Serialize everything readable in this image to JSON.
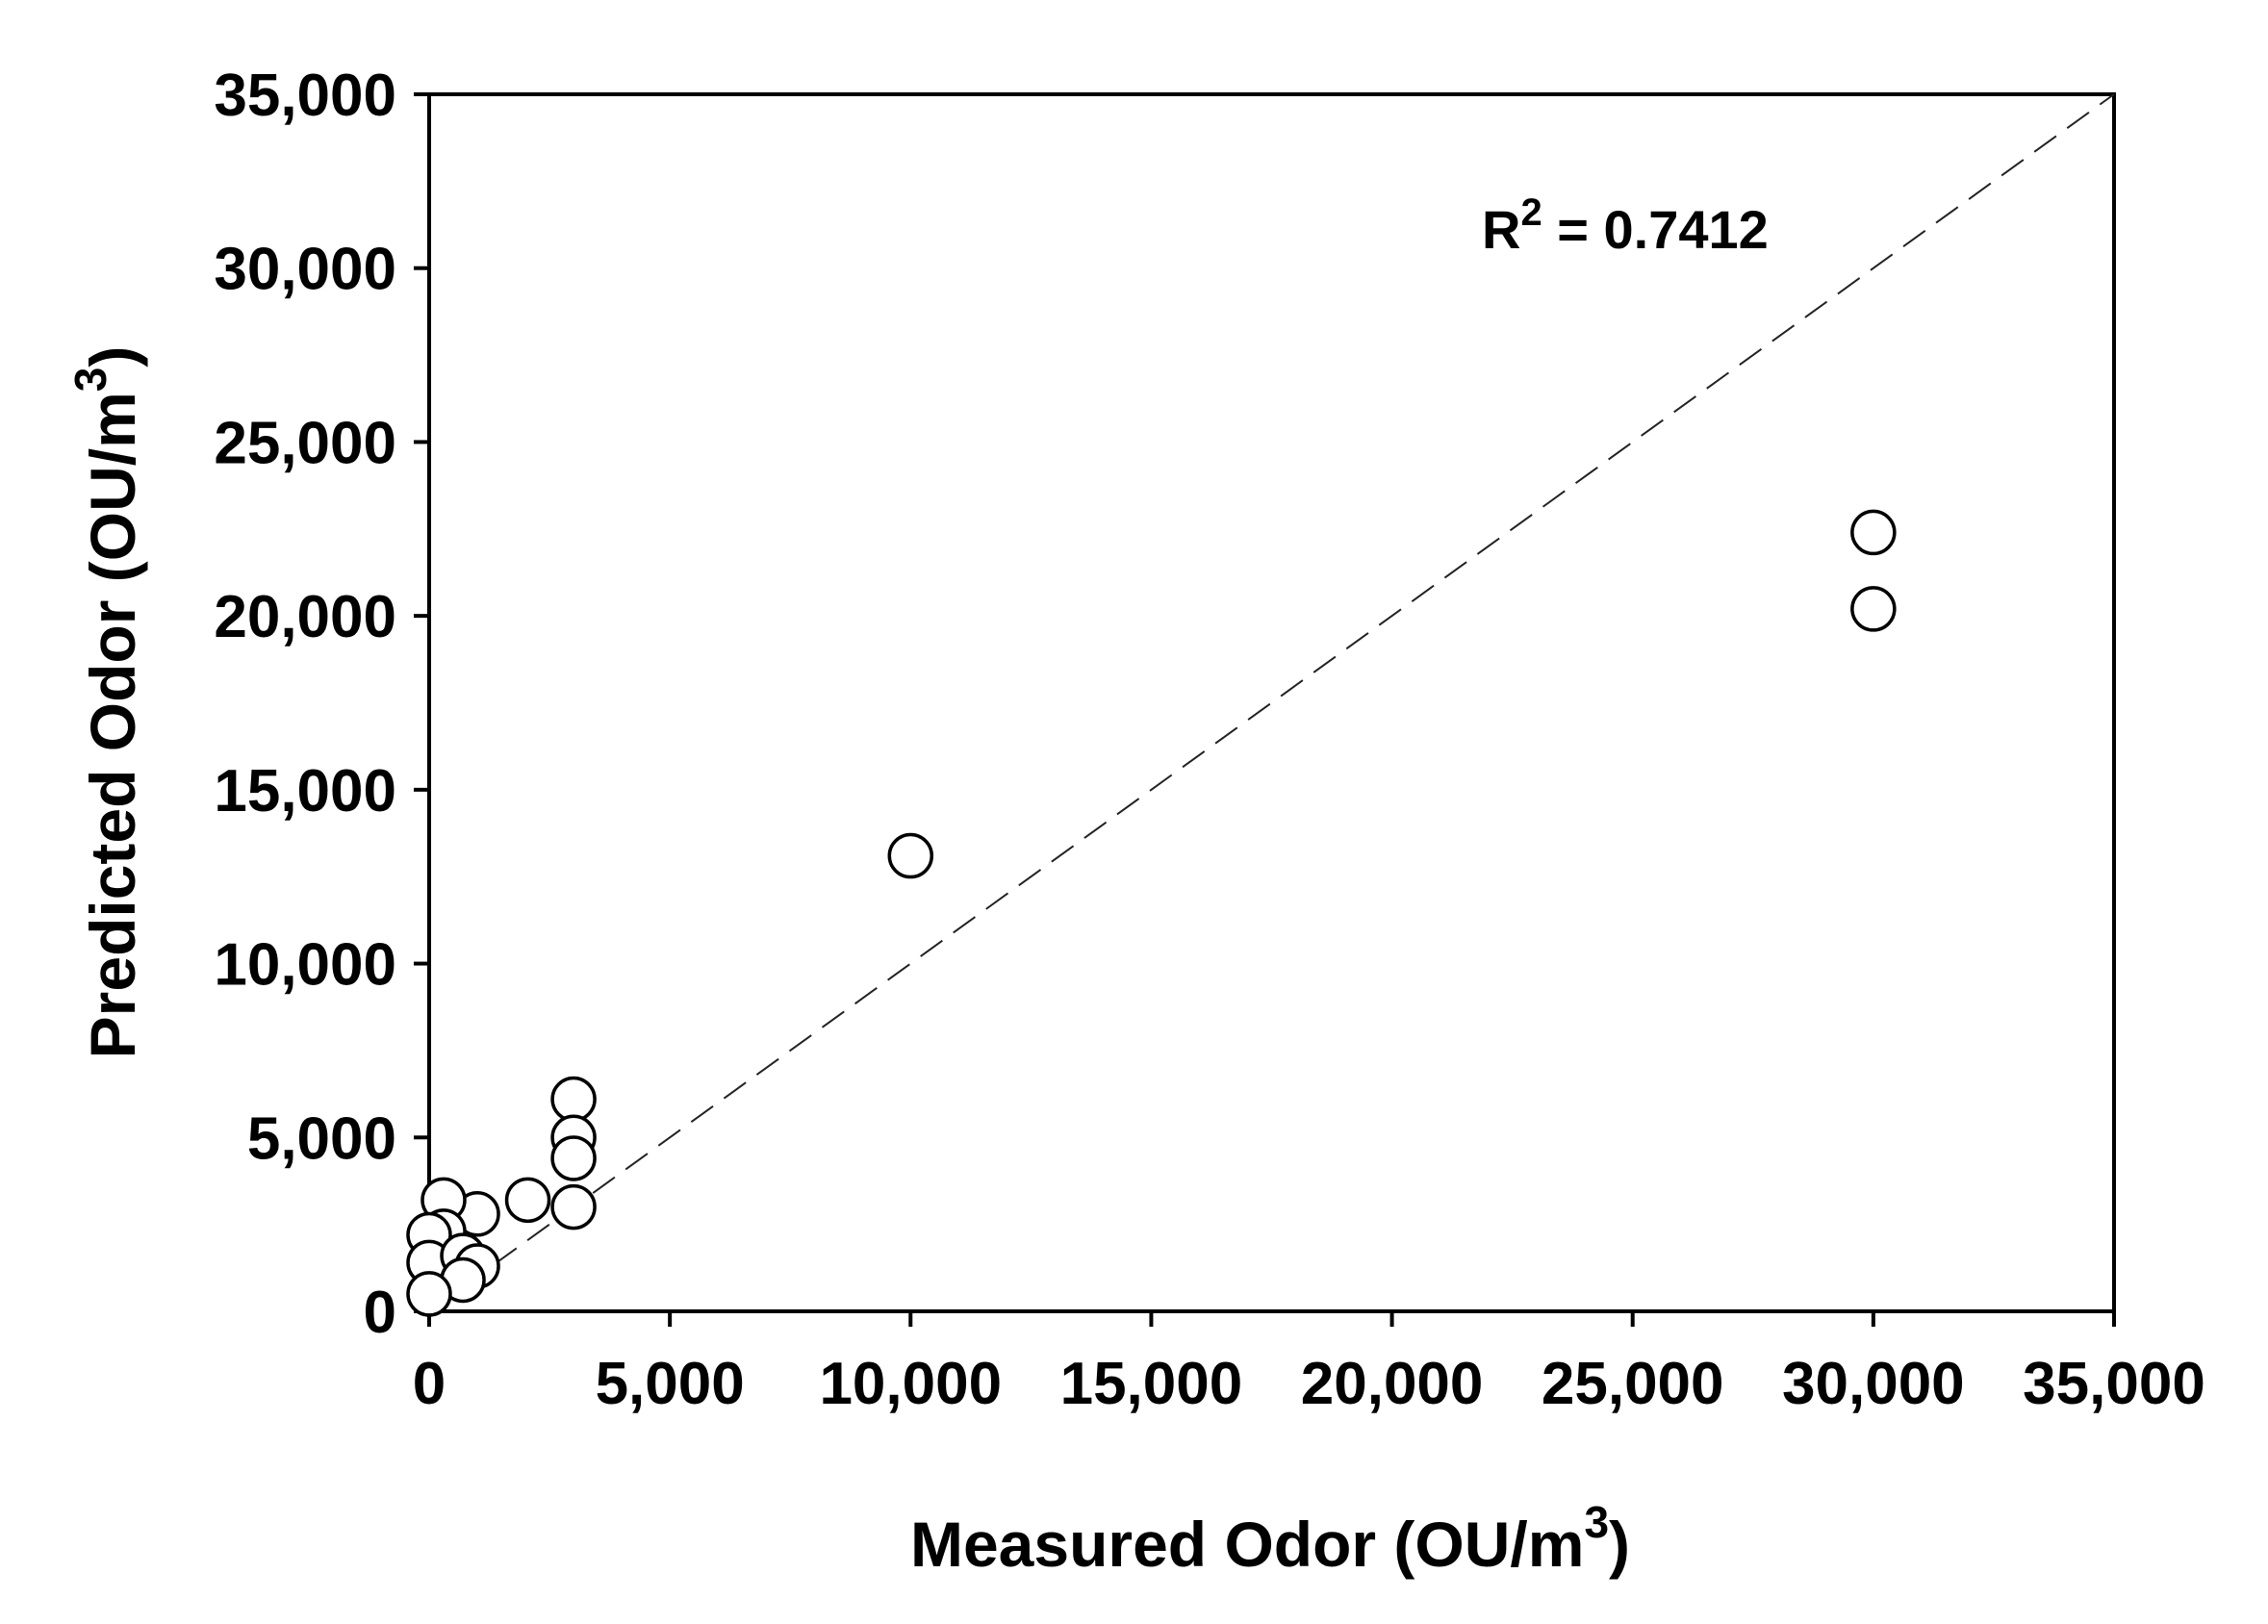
{
  "chart_data": {
    "type": "scatter",
    "xlabel": "Measured Odor (OU/m",
    "xlabel_sup": "3",
    "xlabel_end": ")",
    "ylabel": "Predicted Odor (OU/m",
    "ylabel_sup": "3",
    "ylabel_end": ")",
    "xlim": [
      0,
      35000
    ],
    "ylim": [
      0,
      35000
    ],
    "xticks": [
      0,
      5000,
      10000,
      15000,
      20000,
      25000,
      30000,
      35000
    ],
    "yticks": [
      0,
      5000,
      10000,
      15000,
      20000,
      25000,
      30000,
      35000
    ],
    "xtick_labels": [
      "0",
      "5,000",
      "10,000",
      "15,000",
      "20,000",
      "25,000",
      "30,000",
      "35,000"
    ],
    "ytick_labels": [
      "0",
      "5,000",
      "10,000",
      "15,000",
      "20,000",
      "25,000",
      "30,000",
      "35,000"
    ],
    "grid": false,
    "reference_line": {
      "style": "dashed",
      "from": [
        0,
        0
      ],
      "to": [
        35000,
        35000
      ]
    },
    "annotation": {
      "text_prefix": "R",
      "text_sup": "2",
      "text_suffix": " = 0.7412"
    },
    "series": [
      {
        "marker": "open-circle",
        "points": [
          {
            "x": 30000,
            "y": 22400
          },
          {
            "x": 30000,
            "y": 20200
          },
          {
            "x": 10000,
            "y": 13100
          },
          {
            "x": 3000,
            "y": 6100
          },
          {
            "x": 3000,
            "y": 5000
          },
          {
            "x": 3000,
            "y": 4400
          },
          {
            "x": 3000,
            "y": 3000
          },
          {
            "x": 2050,
            "y": 3200
          },
          {
            "x": 1000,
            "y": 2800
          },
          {
            "x": 300,
            "y": 3200
          },
          {
            "x": 300,
            "y": 2300
          },
          {
            "x": 0,
            "y": 2200
          },
          {
            "x": 0,
            "y": 1400
          },
          {
            "x": 700,
            "y": 1600
          },
          {
            "x": 1000,
            "y": 1300
          },
          {
            "x": 700,
            "y": 900
          },
          {
            "x": 0,
            "y": 500
          }
        ]
      }
    ]
  }
}
